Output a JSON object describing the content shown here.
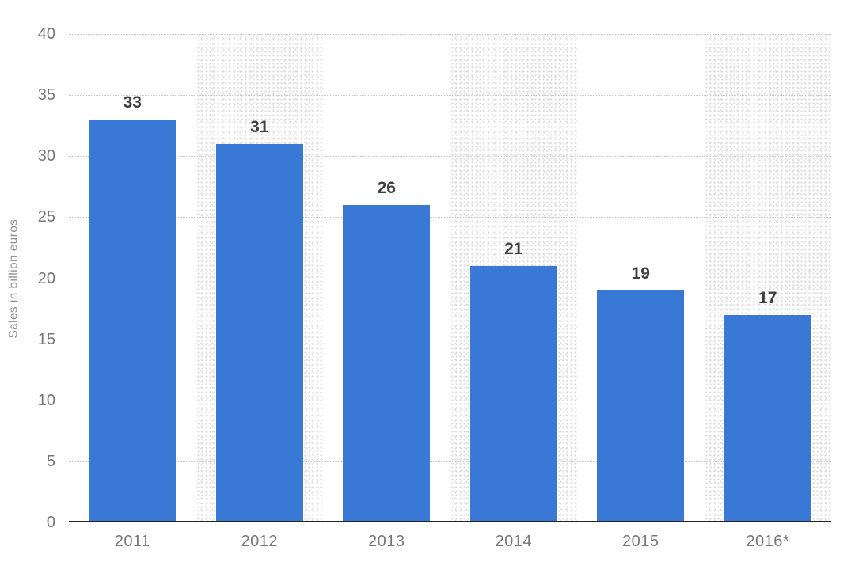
{
  "chart_data": {
    "type": "bar",
    "title": "",
    "categories": [
      "2011",
      "2012",
      "2013",
      "2014",
      "2015",
      "2016*"
    ],
    "values": [
      33,
      31,
      26,
      21,
      19,
      17
    ],
    "xlabel": "",
    "ylabel": "Sales in billion euros",
    "ylim": [
      0,
      40
    ],
    "yticks": [
      0,
      5,
      10,
      15,
      20,
      25,
      30,
      35,
      40
    ],
    "grid": "horizontal-dotted",
    "legend": "none",
    "plot_background": "alternating vertical bands, stippled gray behind 2012, 2014 and 2016*"
  },
  "colors": {
    "bar": "#3a78d6",
    "value_label": "#3f3f3f",
    "axis_tick_label": "#767676",
    "y_axis_title": "#8c8c8c",
    "gridline": "#c9c9c9",
    "axis_line": "#232323",
    "band_dot": "#dcdcdc",
    "background": "#ffffff"
  }
}
